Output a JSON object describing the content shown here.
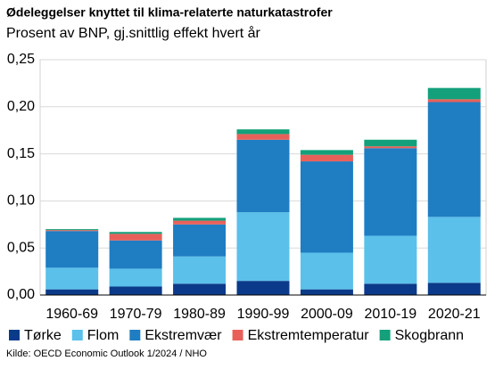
{
  "chart_data": {
    "type": "stacked_bar",
    "title": "Ødeleggelser  knyttet til klima-relaterte naturkatastrofer",
    "subtitle": "Prosent av BNP, gj.snittlig effekt hvert år",
    "source": "Kilde: OECD Economic Outlook 1/2024 / NHO",
    "categories": [
      "1960-69",
      "1970-79",
      "1980-89",
      "1990-99",
      "2000-09",
      "2010-19",
      "2020-21"
    ],
    "series": [
      {
        "name": "Tørke",
        "color": "#0c3a8a",
        "values": [
          0.006,
          0.009,
          0.012,
          0.015,
          0.006,
          0.012,
          0.013
        ]
      },
      {
        "name": "Flom",
        "color": "#5bc0ea",
        "values": [
          0.023,
          0.019,
          0.029,
          0.073,
          0.039,
          0.051,
          0.07
        ]
      },
      {
        "name": "Ekstremvær",
        "color": "#1f7dc2",
        "values": [
          0.039,
          0.03,
          0.034,
          0.077,
          0.097,
          0.093,
          0.122
        ]
      },
      {
        "name": "Ekstremtemperatur",
        "color": "#e8605a",
        "values": [
          0.001,
          0.007,
          0.004,
          0.006,
          0.007,
          0.002,
          0.003
        ]
      },
      {
        "name": "Skogbrann",
        "color": "#14a07a",
        "values": [
          0.001,
          0.002,
          0.003,
          0.005,
          0.005,
          0.007,
          0.012
        ]
      }
    ],
    "ylim": [
      0,
      0.25
    ],
    "yticks": [
      {
        "value": 0,
        "label": "0,00"
      },
      {
        "value": 0.05,
        "label": "0,05"
      },
      {
        "value": 0.1,
        "label": "0,10"
      },
      {
        "value": 0.15,
        "label": "0,15"
      },
      {
        "value": 0.2,
        "label": "0,20"
      },
      {
        "value": 0.25,
        "label": "0,25"
      }
    ],
    "grid": true
  }
}
